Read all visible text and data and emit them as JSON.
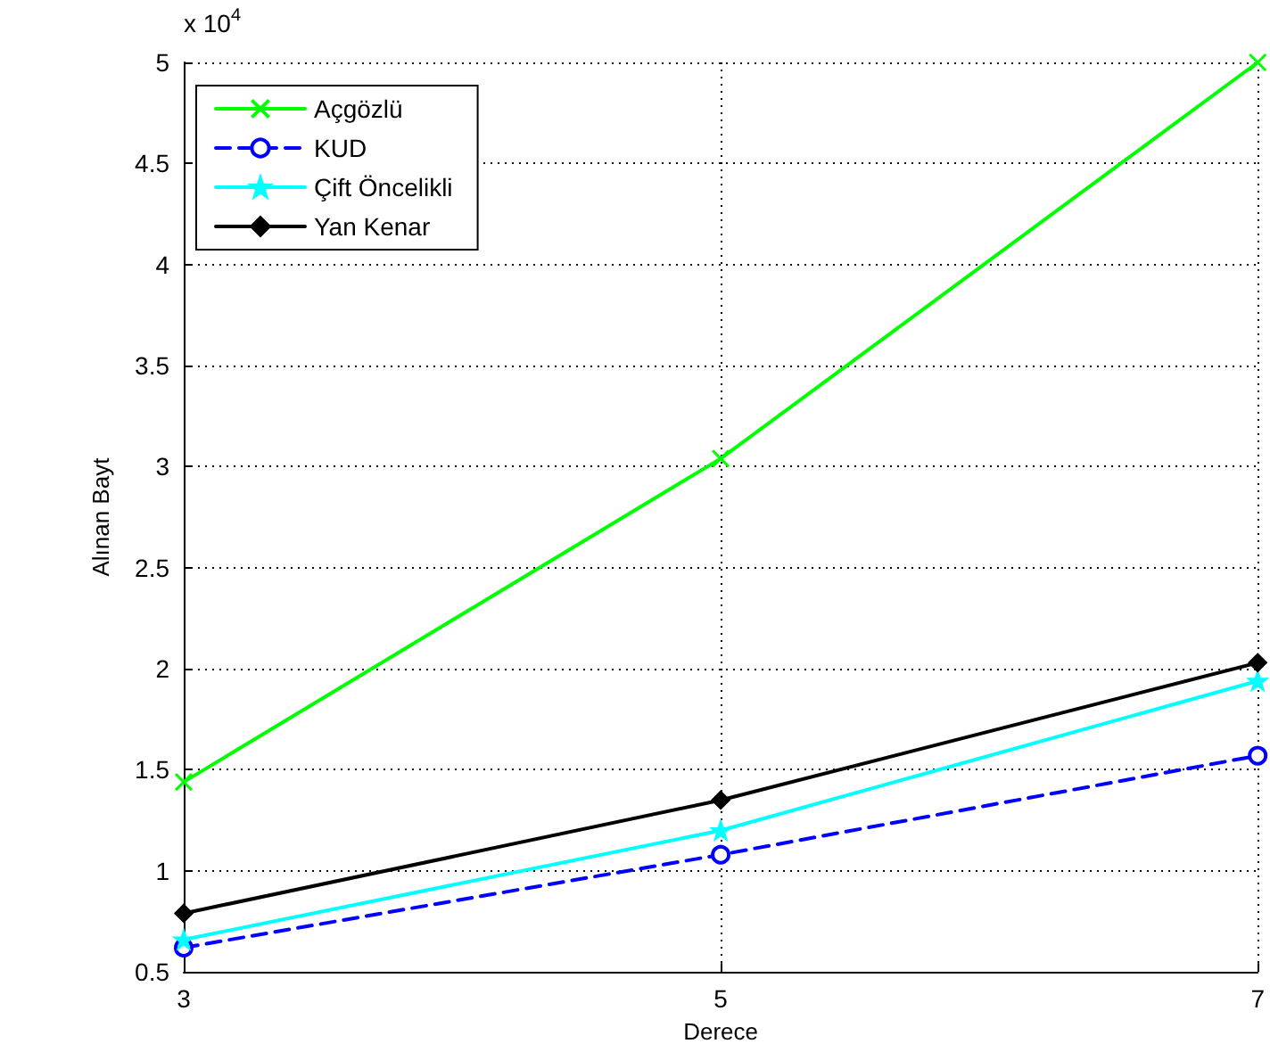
{
  "chart_data": {
    "type": "line",
    "xlabel": "Derece",
    "ylabel": "Alınan Bayt",
    "annotations": [
      "x 10$^{4}$"
    ],
    "x": [
      3,
      5,
      7
    ],
    "xlim": [
      3,
      7
    ],
    "xticks": [
      3,
      5,
      7
    ],
    "ylim": [
      0.5,
      5
    ],
    "yticks": [
      0.5,
      1,
      1.5,
      2,
      2.5,
      3,
      3.5,
      4,
      4.5,
      5
    ],
    "grid": true,
    "legend": "top left",
    "series": [
      {
        "name": "Açgözlü",
        "color": "#00ff00",
        "marker": "cross",
        "line_style": "solid",
        "values": [
          1.44,
          3.04,
          5.0
        ]
      },
      {
        "name": "KUD",
        "color": "#0000ff",
        "marker": "circle",
        "line_style": "dashed",
        "values": [
          0.62,
          1.08,
          1.57
        ]
      },
      {
        "name": "Çift Öncelikli",
        "color": "#00ffff",
        "marker": "star",
        "line_style": "solid",
        "values": [
          0.66,
          1.2,
          1.94
        ]
      },
      {
        "name": "Yan Kenar",
        "color": "#000000",
        "marker": "diamond",
        "line_style": "solid",
        "values": [
          0.79,
          1.35,
          2.03
        ]
      }
    ]
  }
}
